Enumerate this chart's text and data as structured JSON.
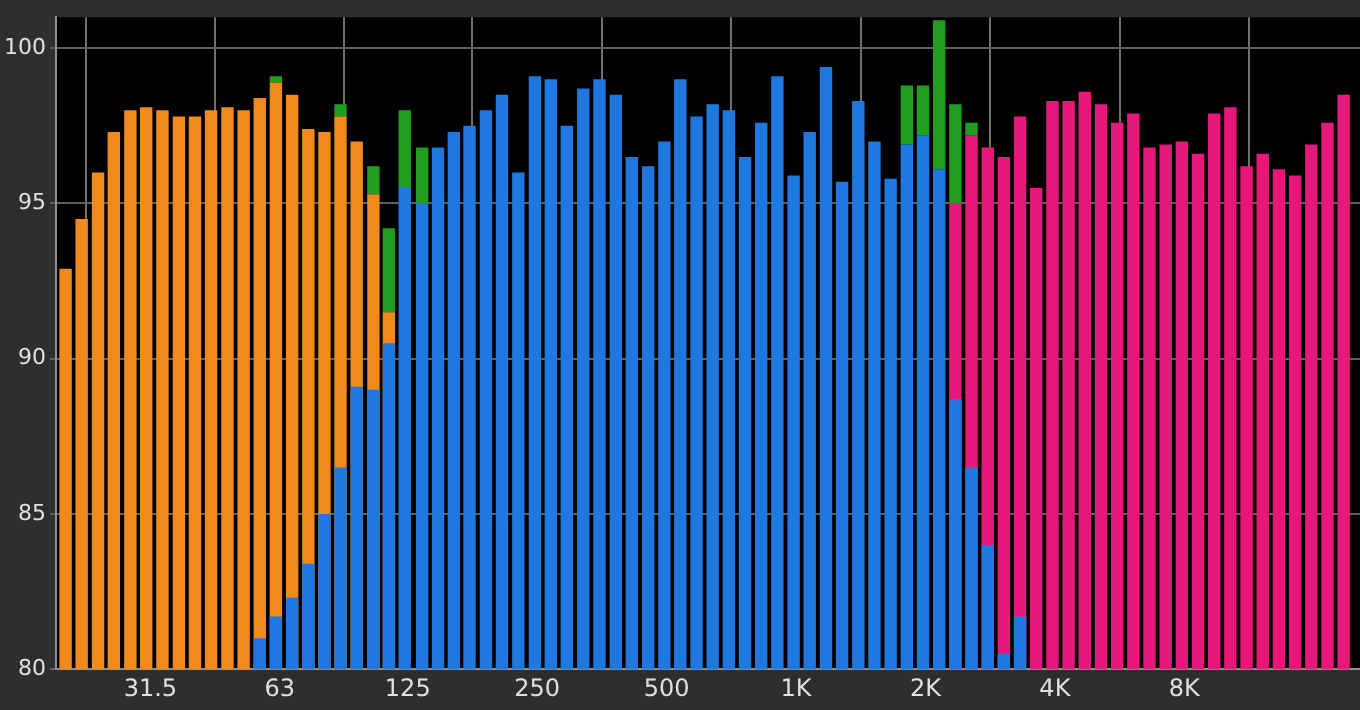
{
  "chart_data": {
    "type": "bar",
    "log": "x",
    "grid": true,
    "xlim": [
      19,
      20500
    ],
    "ylim": [
      80,
      101
    ],
    "xticks": [
      31.5,
      63,
      125,
      250,
      500,
      {
        "value": 1000,
        "label": "1K"
      },
      {
        "value": 2000,
        "label": "2K"
      },
      {
        "value": 4000,
        "label": "4K"
      },
      {
        "value": 8000,
        "label": "8K"
      }
    ],
    "yticks": [
      80,
      85,
      90,
      95,
      100
    ],
    "series": [
      {
        "color": "#1f9e1f",
        "x": [
          61.7,
          87.2,
          104,
          113,
          123,
          135,
          1810,
          1974,
          2153,
          2348,
          2560
        ],
        "base": [
          98.9,
          97.8,
          95.3,
          91.5,
          95.5,
          95.0,
          96.9,
          97.2,
          96.1,
          95.0,
          97.2
        ],
        "values": [
          0.2,
          0.4,
          0.9,
          2.7,
          2.5,
          1.8,
          1.9,
          1.6,
          4.8,
          3.2,
          0.4
        ]
      },
      {
        "color": "#f08a1c",
        "x": [
          20,
          21.8,
          23.8,
          25.9,
          28.3,
          30.8,
          33.6,
          36.7,
          40,
          43.6,
          47.6,
          51.9,
          56.6,
          61.7,
          67.3,
          73.4,
          80,
          87.2,
          95.1,
          104,
          113
        ],
        "values": [
          92.9,
          94.5,
          96.0,
          97.3,
          98.0,
          98.1,
          98.0,
          97.8,
          97.8,
          98.0,
          98.1,
          98.0,
          98.4,
          98.9,
          98.5,
          97.4,
          97.3,
          97.8,
          97.0,
          95.3,
          91.5
        ]
      },
      {
        "color": "#e8187a",
        "x": [
          2348,
          2560,
          2792,
          3044,
          3320,
          3620,
          3948,
          4305,
          4695,
          5120,
          5584,
          6089,
          6640,
          7241,
          7897,
          8611,
          9391,
          10240,
          11167,
          12177,
          13280,
          14482,
          15793,
          17222,
          18781
        ],
        "values": [
          95.0,
          97.2,
          96.8,
          96.5,
          97.8,
          95.5,
          98.3,
          98.3,
          98.6,
          98.2,
          97.6,
          97.9,
          96.8,
          96.9,
          97.0,
          96.6,
          97.9,
          98.1,
          96.2,
          96.6,
          96.1,
          95.9,
          96.9,
          97.6,
          98.5
        ]
      },
      {
        "color": "#1f78e0",
        "x": [
          56.6,
          61.7,
          67.3,
          73.4,
          80,
          87.2,
          95.1,
          104,
          113,
          123,
          135,
          147,
          160,
          174,
          190,
          207,
          226,
          247,
          269,
          293,
          320,
          349,
          381,
          415,
          453,
          494,
          538,
          587,
          640,
          698,
          761,
          830,
          905,
          987,
          1076,
          1174,
          1280,
          1396,
          1522,
          1660,
          1810,
          1974,
          2153,
          2348,
          2560,
          2792,
          3044,
          3320
        ],
        "values": [
          81.0,
          81.7,
          82.3,
          83.4,
          85.0,
          86.5,
          89.1,
          89.0,
          90.5,
          95.5,
          95.0,
          96.8,
          97.3,
          97.5,
          98.0,
          98.5,
          96.0,
          99.1,
          99.0,
          97.5,
          98.7,
          99.0,
          98.5,
          96.5,
          96.2,
          97.0,
          99.0,
          97.8,
          98.2,
          98.0,
          96.5,
          97.6,
          99.1,
          95.9,
          97.3,
          99.4,
          95.7,
          98.3,
          97.0,
          95.8,
          96.9,
          97.2,
          96.1,
          88.7,
          86.5,
          84.0,
          80.5,
          81.7
        ]
      }
    ]
  }
}
